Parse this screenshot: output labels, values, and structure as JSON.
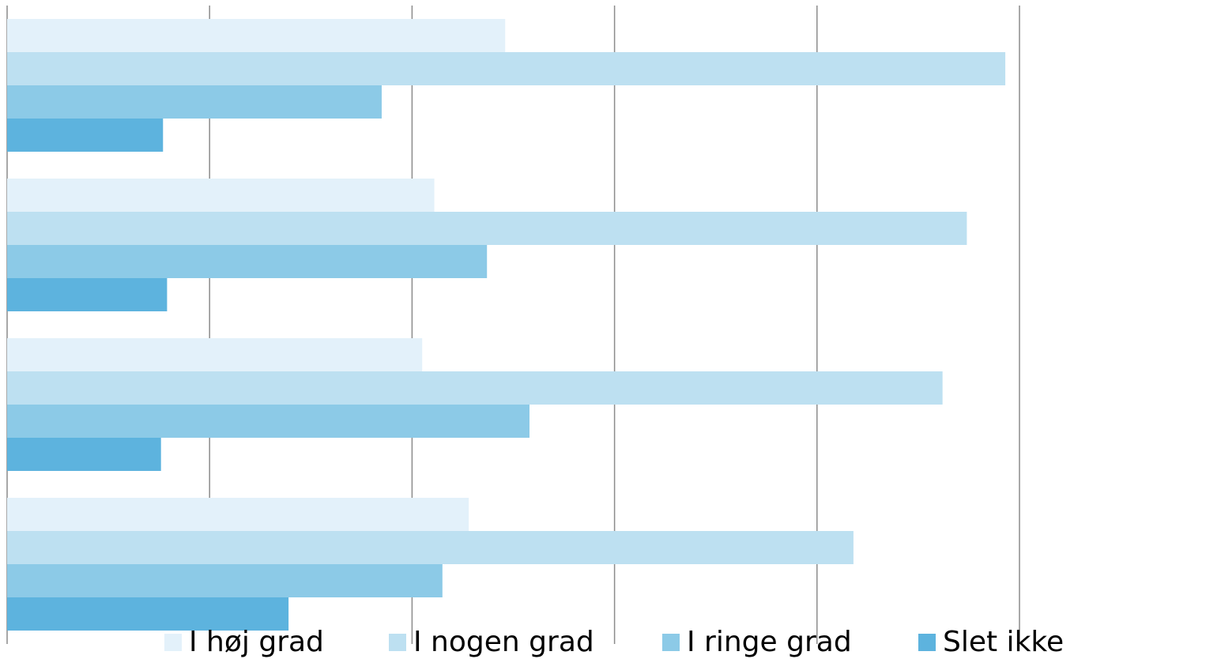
{
  "chart_data": {
    "type": "hbar",
    "categories": [
      null,
      null,
      null,
      null
    ],
    "series": [
      {
        "name": "I høj grad",
        "color": "#e3f1fa",
        "values": [
          24.6,
          21.1,
          20.5,
          22.8
        ]
      },
      {
        "name": "I nogen grad",
        "color": "#bde0f1",
        "values": [
          49.3,
          47.4,
          46.2,
          41.8
        ]
      },
      {
        "name": "I ringe grad",
        "color": "#8ccae7",
        "values": [
          18.5,
          23.7,
          25.8,
          21.5
        ]
      },
      {
        "name": "Slet ikke",
        "color": "#5db3de",
        "values": [
          7.7,
          7.9,
          7.6,
          13.9
        ]
      }
    ],
    "xlim": [
      0,
      50
    ],
    "xticks": [
      0,
      10,
      20,
      30,
      40,
      50
    ],
    "grid": true,
    "legend": "bottom"
  }
}
